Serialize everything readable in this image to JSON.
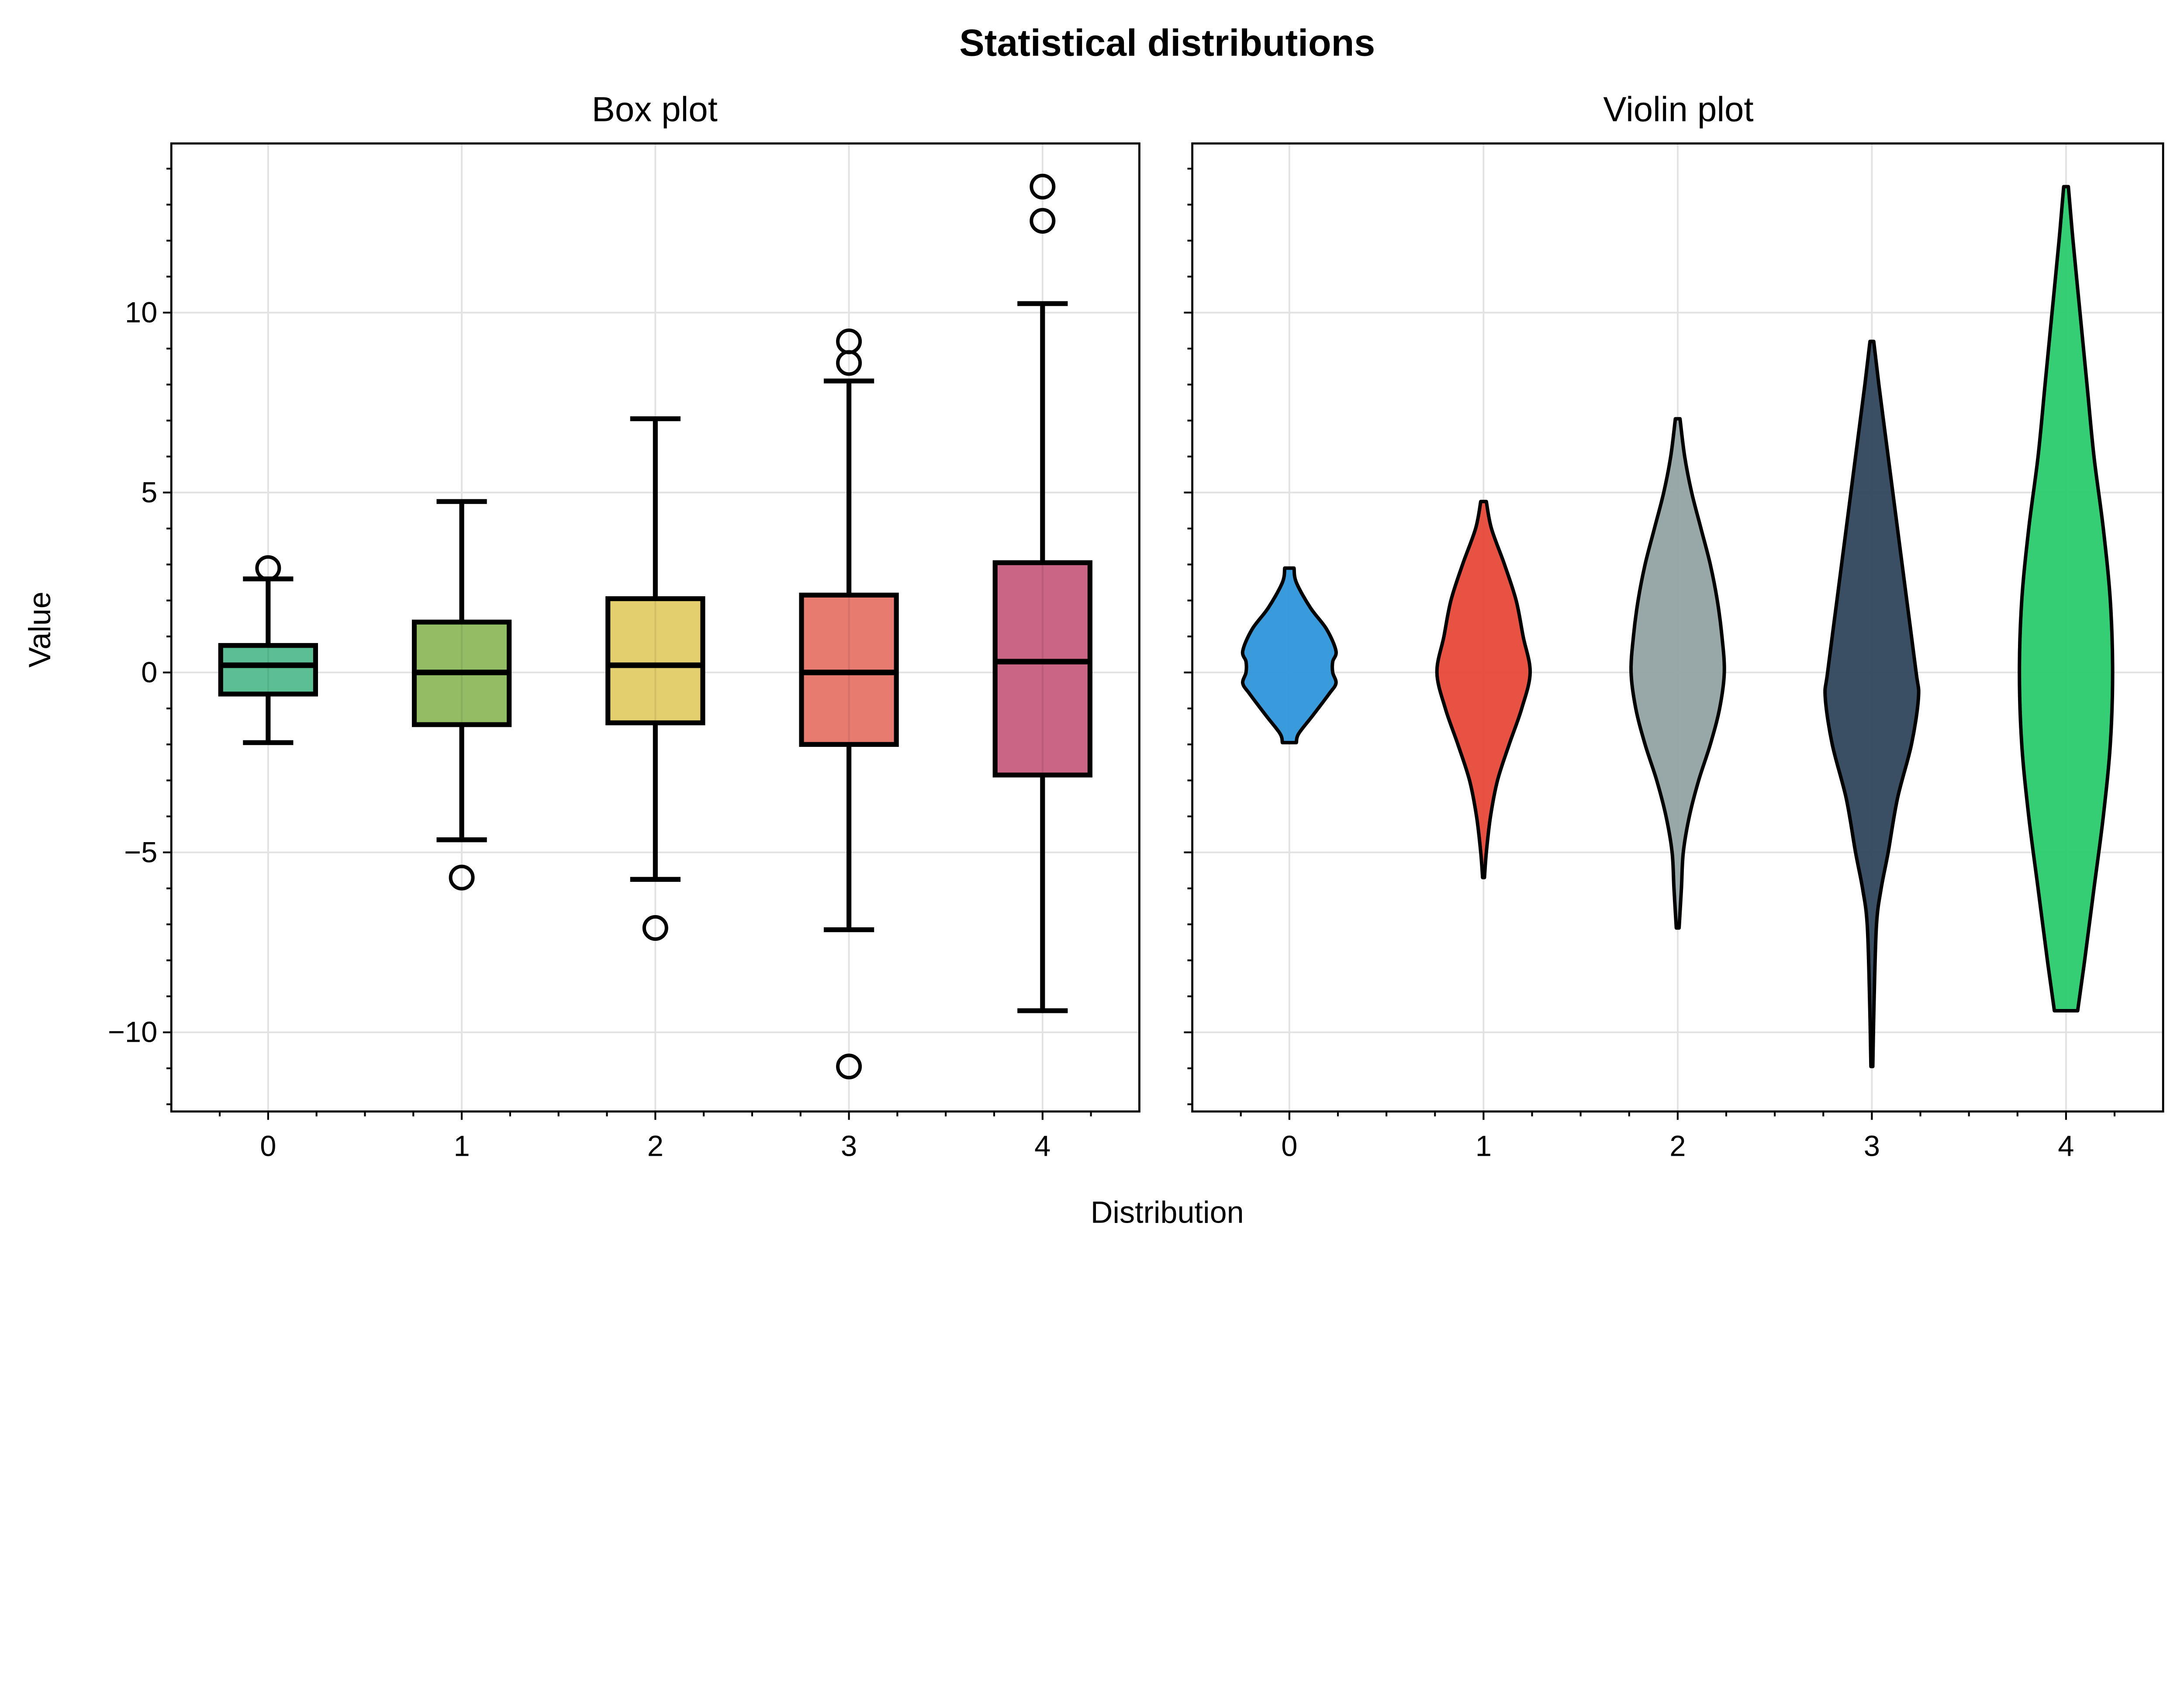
{
  "chart_data": [
    {
      "type": "box",
      "figure_title": "Statistical distributions",
      "title": "Box plot",
      "xlabel": "Distribution",
      "ylabel": "Value",
      "categories": [
        "0",
        "1",
        "2",
        "3",
        "4"
      ],
      "xlim": [
        -0.5,
        4.5
      ],
      "ylim": [
        -12.2,
        14.7
      ],
      "yticks": [
        -10,
        -5,
        0,
        5,
        10
      ],
      "ytick_labels": [
        "−10",
        "−5",
        "0",
        "5",
        "10"
      ],
      "grid": true,
      "colors": [
        "#5bbf93",
        "#92bd65",
        "#e3cf6d",
        "#e77b70",
        "#cb6585"
      ],
      "boxes": [
        {
          "whisker_low": -1.95,
          "q1": -0.6,
          "median": 0.2,
          "q3": 0.75,
          "whisker_high": 2.6,
          "outliers": [
            2.9
          ]
        },
        {
          "whisker_low": -4.65,
          "q1": -1.45,
          "median": 0.0,
          "q3": 1.4,
          "whisker_high": 4.75,
          "outliers": [
            -5.7
          ]
        },
        {
          "whisker_low": -5.75,
          "q1": -1.4,
          "median": 0.2,
          "q3": 2.05,
          "whisker_high": 7.05,
          "outliers": [
            -7.1
          ]
        },
        {
          "whisker_low": -7.15,
          "q1": -2.0,
          "median": 0.0,
          "q3": 2.15,
          "whisker_high": 8.1,
          "outliers": [
            8.6,
            9.2,
            -10.95
          ]
        },
        {
          "whisker_low": -9.4,
          "q1": -2.85,
          "median": 0.3,
          "q3": 3.05,
          "whisker_high": 10.25,
          "outliers": [
            12.55,
            13.5
          ]
        }
      ]
    },
    {
      "type": "violin",
      "title": "Violin plot",
      "categories": [
        "0",
        "1",
        "2",
        "3",
        "4"
      ],
      "xlim": [
        -0.5,
        4.5
      ],
      "ylim": [
        -12.2,
        14.7
      ],
      "yticks": [
        -10,
        -5,
        0,
        5,
        10
      ],
      "grid": true,
      "colors": [
        "#3498db",
        "#e74c3c",
        "#95a5a6",
        "#34495e",
        "#2ecc71"
      ],
      "violins": [
        {
          "density": [
            [
              2.9,
              0.1
            ],
            [
              2.5,
              0.15
            ],
            [
              1.8,
              0.45
            ],
            [
              1.2,
              0.8
            ],
            [
              0.6,
              1.0
            ],
            [
              0.3,
              0.93
            ],
            [
              0,
              0.93
            ],
            [
              -0.3,
              1.0
            ],
            [
              -0.6,
              0.85
            ],
            [
              -1.2,
              0.5
            ],
            [
              -1.7,
              0.2
            ],
            [
              -1.95,
              0.15
            ]
          ]
        },
        {
          "density": [
            [
              4.75,
              0.06
            ],
            [
              4,
              0.17
            ],
            [
              3,
              0.45
            ],
            [
              2,
              0.7
            ],
            [
              1,
              0.85
            ],
            [
              0,
              1.0
            ],
            [
              -1,
              0.82
            ],
            [
              -2,
              0.55
            ],
            [
              -3,
              0.3
            ],
            [
              -4,
              0.15
            ],
            [
              -5,
              0.06
            ],
            [
              -5.7,
              0.02
            ]
          ]
        },
        {
          "density": [
            [
              7.05,
              0.05
            ],
            [
              6,
              0.15
            ],
            [
              5,
              0.3
            ],
            [
              4,
              0.5
            ],
            [
              3,
              0.7
            ],
            [
              2,
              0.85
            ],
            [
              1,
              0.95
            ],
            [
              0,
              1.0
            ],
            [
              -1,
              0.9
            ],
            [
              -2,
              0.7
            ],
            [
              -3,
              0.45
            ],
            [
              -4,
              0.25
            ],
            [
              -5,
              0.12
            ],
            [
              -6,
              0.08
            ],
            [
              -7.1,
              0.03
            ]
          ]
        },
        {
          "density": [
            [
              9.2,
              0.04
            ],
            [
              8,
              0.15
            ],
            [
              6,
              0.35
            ],
            [
              4,
              0.55
            ],
            [
              2,
              0.75
            ],
            [
              0,
              0.95
            ],
            [
              -0.7,
              1.0
            ],
            [
              -2,
              0.85
            ],
            [
              -3.5,
              0.55
            ],
            [
              -5,
              0.35
            ],
            [
              -6,
              0.2
            ],
            [
              -7,
              0.1
            ],
            [
              -9,
              0.05
            ],
            [
              -10.95,
              0.02
            ]
          ]
        },
        {
          "density": [
            [
              13.5,
              0.05
            ],
            [
              12,
              0.15
            ],
            [
              10,
              0.3
            ],
            [
              8,
              0.45
            ],
            [
              6,
              0.6
            ],
            [
              4,
              0.8
            ],
            [
              2,
              0.95
            ],
            [
              0,
              1.0
            ],
            [
              -2,
              0.95
            ],
            [
              -4,
              0.8
            ],
            [
              -6,
              0.6
            ],
            [
              -8,
              0.4
            ],
            [
              -9.4,
              0.25
            ]
          ]
        }
      ]
    }
  ]
}
